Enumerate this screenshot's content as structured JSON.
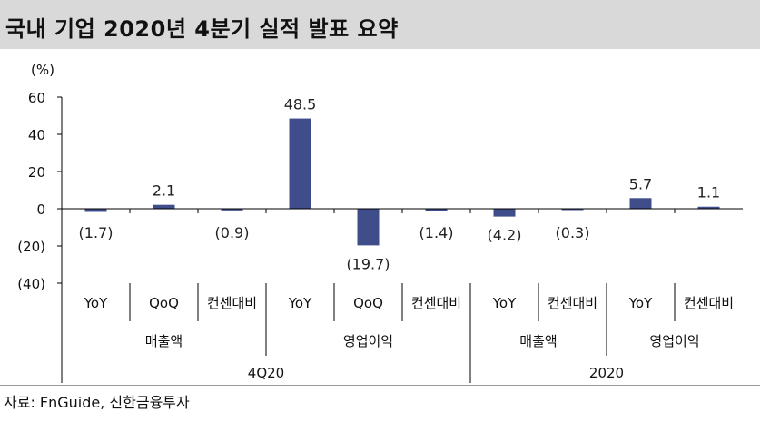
{
  "title": "국내 기업 2020년 4분기 실적 발표 요약",
  "source": "자료: FnGuide, 신한금융투자",
  "colors": {
    "bar": "#3f4d8a",
    "title_bg": "#d9d9d9",
    "axis": "#000000"
  },
  "chart_data": {
    "type": "bar",
    "ylabel": "(%)",
    "ylim": [
      -40,
      60
    ],
    "yticks": [
      60,
      40,
      20,
      0,
      -20,
      -40
    ],
    "ytick_labels": [
      "60",
      "40",
      "20",
      "0",
      "(20)",
      "(40)"
    ],
    "categories": [
      "YoY",
      "QoQ",
      "컨센대비",
      "YoY",
      "QoQ",
      "컨센대비",
      "YoY",
      "컨센대비",
      "YoY",
      "컨센대비"
    ],
    "values": [
      -1.7,
      2.1,
      -0.9,
      48.5,
      -19.7,
      -1.4,
      -4.2,
      -0.3,
      5.7,
      1.1
    ],
    "data_labels": [
      "(1.7)",
      "2.1",
      "(0.9)",
      "48.5",
      "(19.7)",
      "(1.4)",
      "(4.2)",
      "(0.3)",
      "5.7",
      "1.1"
    ],
    "groups": [
      {
        "label": "매출액",
        "start": 0,
        "end": 2
      },
      {
        "label": "영업이익",
        "start": 3,
        "end": 5
      },
      {
        "label": "매출액",
        "start": 6,
        "end": 7
      },
      {
        "label": "영업이익",
        "start": 8,
        "end": 9
      }
    ],
    "periods": [
      {
        "label": "4Q20",
        "start": 0,
        "end": 5
      },
      {
        "label": "2020",
        "start": 6,
        "end": 9
      }
    ],
    "grid": false,
    "legend": "none"
  }
}
